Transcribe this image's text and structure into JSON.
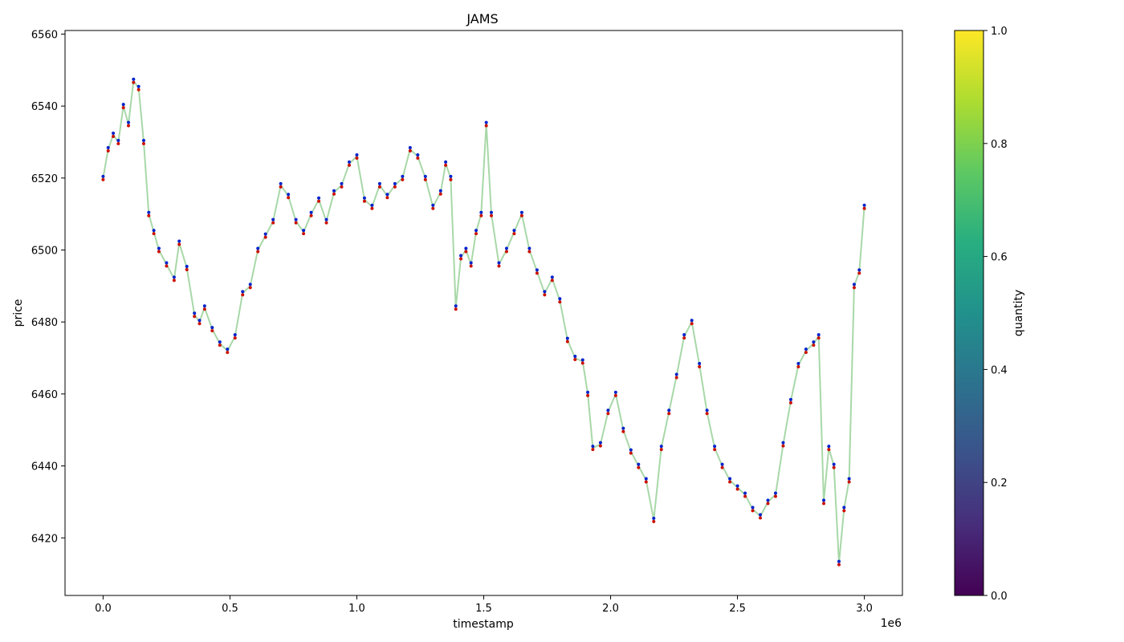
{
  "chart_data": {
    "type": "line",
    "title": "JAMS",
    "xlabel": "timestamp",
    "ylabel": "price",
    "x_offset_label": "1e6",
    "xlim": [
      -0.15,
      3.15
    ],
    "ylim": [
      6404,
      6561
    ],
    "x_ticks": [
      0.0,
      0.5,
      1.0,
      1.5,
      2.0,
      2.5,
      3.0
    ],
    "x_tick_labels": [
      "0.0",
      "0.5",
      "1.0",
      "1.5",
      "2.0",
      "2.5",
      "3.0"
    ],
    "y_ticks": [
      6420,
      6440,
      6460,
      6480,
      6500,
      6520,
      6540,
      6560
    ],
    "y_tick_labels": [
      "6420",
      "6440",
      "6460",
      "6480",
      "6500",
      "6520",
      "6540",
      "6560"
    ],
    "grid": false,
    "colorbar": {
      "label": "quantity",
      "colormap": "viridis",
      "range": [
        0.0,
        1.0
      ],
      "ticks": [
        0.0,
        0.2,
        0.4,
        0.6,
        0.8,
        1.0
      ],
      "tick_labels": [
        "0.0",
        "0.2",
        "0.4",
        "0.6",
        "0.8",
        "1.0"
      ]
    },
    "colors": {
      "line": "#a8d8a8",
      "bid": "#cc1100",
      "ask": "#0022cc"
    },
    "series": [
      {
        "role": "mid-price line",
        "x": [
          0.0,
          0.02,
          0.04,
          0.06,
          0.08,
          0.1,
          0.12,
          0.14,
          0.16,
          0.18,
          0.2,
          0.22,
          0.25,
          0.28,
          0.3,
          0.33,
          0.36,
          0.38,
          0.4,
          0.43,
          0.46,
          0.49,
          0.52,
          0.55,
          0.58,
          0.61,
          0.64,
          0.67,
          0.7,
          0.73,
          0.76,
          0.79,
          0.82,
          0.85,
          0.88,
          0.91,
          0.94,
          0.97,
          1.0,
          1.03,
          1.06,
          1.09,
          1.12,
          1.15,
          1.18,
          1.21,
          1.24,
          1.27,
          1.3,
          1.33,
          1.35,
          1.37,
          1.39,
          1.41,
          1.43,
          1.45,
          1.47,
          1.49,
          1.51,
          1.53,
          1.56,
          1.59,
          1.62,
          1.65,
          1.68,
          1.71,
          1.74,
          1.77,
          1.8,
          1.83,
          1.86,
          1.89,
          1.91,
          1.93,
          1.96,
          1.99,
          2.02,
          2.05,
          2.08,
          2.11,
          2.14,
          2.17,
          2.2,
          2.23,
          2.26,
          2.29,
          2.32,
          2.35,
          2.38,
          2.41,
          2.44,
          2.47,
          2.5,
          2.53,
          2.56,
          2.59,
          2.62,
          2.65,
          2.68,
          2.71,
          2.74,
          2.77,
          2.8,
          2.82,
          2.84,
          2.86,
          2.88,
          2.9,
          2.92,
          2.94,
          2.96,
          2.98,
          3.0
        ],
        "y": [
          6520,
          6528,
          6532,
          6530,
          6540,
          6535,
          6547,
          6545,
          6530,
          6510,
          6505,
          6500,
          6496,
          6492,
          6502,
          6495,
          6482,
          6480,
          6484,
          6478,
          6474,
          6472,
          6476,
          6488,
          6490,
          6500,
          6504,
          6508,
          6518,
          6515,
          6508,
          6505,
          6510,
          6514,
          6508,
          6516,
          6518,
          6524,
          6526,
          6514,
          6512,
          6518,
          6515,
          6518,
          6520,
          6528,
          6526,
          6520,
          6512,
          6516,
          6524,
          6520,
          6484,
          6498,
          6500,
          6496,
          6505,
          6510,
          6535,
          6510,
          6496,
          6500,
          6505,
          6510,
          6500,
          6494,
          6488,
          6492,
          6486,
          6475,
          6470,
          6469,
          6460,
          6445,
          6446,
          6455,
          6460,
          6450,
          6444,
          6440,
          6436,
          6425,
          6445,
          6455,
          6465,
          6476,
          6480,
          6468,
          6455,
          6445,
          6440,
          6436,
          6434,
          6432,
          6428,
          6426,
          6430,
          6432,
          6446,
          6458,
          6468,
          6472,
          6474,
          6476,
          6430,
          6445,
          6440,
          6413,
          6428,
          6436,
          6490,
          6494,
          6512
        ]
      }
    ]
  }
}
